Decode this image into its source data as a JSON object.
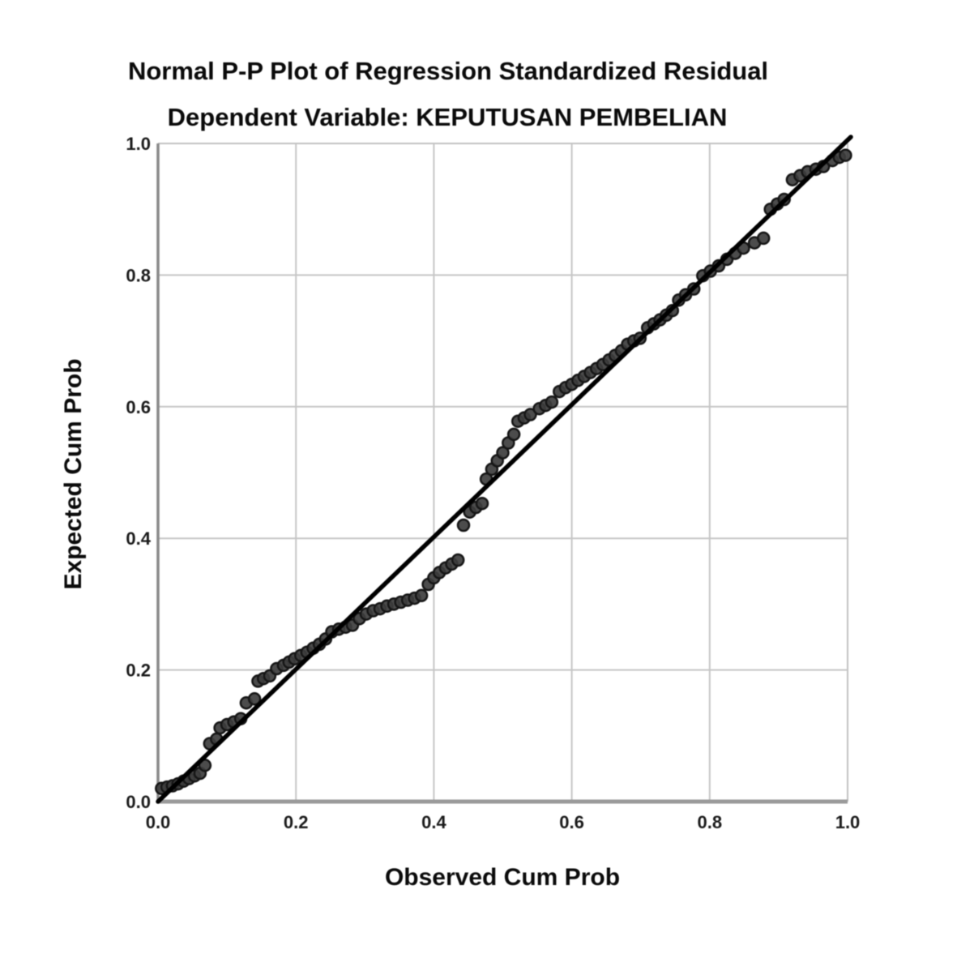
{
  "chart": {
    "title": "Normal P-P Plot of Regression Standardized Residual",
    "subtitle": "Dependent Variable: KEPUTUSAN PEMBELIAN",
    "x_axis_label": "Observed Cum Prob",
    "y_axis_label": "Expected Cum Prob"
  },
  "colors": {
    "background": "#ffffff",
    "gridline": "#c6c6c6",
    "frame_left": "#8a8a8a",
    "frame_bottom": "#9a9a9a",
    "frame_light": "#c2c2c2",
    "point_fill": "#3d3d3d",
    "point_stroke": "#161616",
    "reference_line": "#000000",
    "text": "#0a0a0a"
  },
  "chart_data": {
    "type": "scatter",
    "title": "Normal P-P Plot of Regression Standardized Residual",
    "subtitle": "Dependent Variable: KEPUTUSAN PEMBELIAN",
    "xlabel": "Observed Cum Prob",
    "ylabel": "Expected Cum Prob",
    "xlim": [
      0.0,
      1.0
    ],
    "ylim": [
      0.0,
      1.0
    ],
    "xticks": [
      0.0,
      0.2,
      0.4,
      0.6,
      0.8,
      1.0
    ],
    "yticks": [
      0.0,
      0.2,
      0.4,
      0.6,
      0.8,
      1.0
    ],
    "xticklabels": [
      "0.0",
      "0.2",
      "0.4",
      "0.6",
      "0.8",
      "1.0"
    ],
    "yticklabels": [
      "0.0",
      "0.2",
      "0.4",
      "0.6",
      "0.8",
      "1.0"
    ],
    "grid": true,
    "legend": "none",
    "reference_line": {
      "from": [
        0.0,
        0.0
      ],
      "to": [
        1.0,
        1.0
      ]
    },
    "series": [
      {
        "name": "Regression Standardized Residual",
        "marker": "circle",
        "points": [
          [
            0.005,
            0.02
          ],
          [
            0.013,
            0.022
          ],
          [
            0.021,
            0.024
          ],
          [
            0.029,
            0.027
          ],
          [
            0.037,
            0.031
          ],
          [
            0.045,
            0.035
          ],
          [
            0.053,
            0.039
          ],
          [
            0.061,
            0.043
          ],
          [
            0.068,
            0.055
          ],
          [
            0.075,
            0.088
          ],
          [
            0.085,
            0.095
          ],
          [
            0.09,
            0.112
          ],
          [
            0.1,
            0.117
          ],
          [
            0.11,
            0.121
          ],
          [
            0.12,
            0.126
          ],
          [
            0.128,
            0.15
          ],
          [
            0.14,
            0.156
          ],
          [
            0.145,
            0.183
          ],
          [
            0.153,
            0.187
          ],
          [
            0.162,
            0.191
          ],
          [
            0.172,
            0.202
          ],
          [
            0.182,
            0.207
          ],
          [
            0.19,
            0.212
          ],
          [
            0.198,
            0.217
          ],
          [
            0.207,
            0.222
          ],
          [
            0.216,
            0.227
          ],
          [
            0.225,
            0.233
          ],
          [
            0.234,
            0.239
          ],
          [
            0.243,
            0.247
          ],
          [
            0.252,
            0.258
          ],
          [
            0.262,
            0.262
          ],
          [
            0.272,
            0.265
          ],
          [
            0.282,
            0.268
          ],
          [
            0.292,
            0.278
          ],
          [
            0.302,
            0.285
          ],
          [
            0.312,
            0.29
          ],
          [
            0.322,
            0.293
          ],
          [
            0.332,
            0.297
          ],
          [
            0.342,
            0.3
          ],
          [
            0.352,
            0.303
          ],
          [
            0.362,
            0.306
          ],
          [
            0.372,
            0.309
          ],
          [
            0.382,
            0.313
          ],
          [
            0.392,
            0.33
          ],
          [
            0.4,
            0.34
          ],
          [
            0.408,
            0.348
          ],
          [
            0.417,
            0.355
          ],
          [
            0.426,
            0.361
          ],
          [
            0.435,
            0.367
          ],
          [
            0.443,
            0.42
          ],
          [
            0.452,
            0.44
          ],
          [
            0.461,
            0.447
          ],
          [
            0.47,
            0.453
          ],
          [
            0.476,
            0.49
          ],
          [
            0.484,
            0.505
          ],
          [
            0.492,
            0.518
          ],
          [
            0.5,
            0.53
          ],
          [
            0.508,
            0.545
          ],
          [
            0.516,
            0.558
          ],
          [
            0.522,
            0.578
          ],
          [
            0.531,
            0.583
          ],
          [
            0.54,
            0.588
          ],
          [
            0.553,
            0.597
          ],
          [
            0.562,
            0.602
          ],
          [
            0.571,
            0.607
          ],
          [
            0.582,
            0.623
          ],
          [
            0.591,
            0.629
          ],
          [
            0.6,
            0.634
          ],
          [
            0.609,
            0.64
          ],
          [
            0.618,
            0.646
          ],
          [
            0.627,
            0.652
          ],
          [
            0.636,
            0.658
          ],
          [
            0.645,
            0.664
          ],
          [
            0.654,
            0.671
          ],
          [
            0.663,
            0.678
          ],
          [
            0.672,
            0.685
          ],
          [
            0.681,
            0.695
          ],
          [
            0.69,
            0.7
          ],
          [
            0.699,
            0.704
          ],
          [
            0.71,
            0.72
          ],
          [
            0.719,
            0.726
          ],
          [
            0.728,
            0.732
          ],
          [
            0.737,
            0.739
          ],
          [
            0.746,
            0.746
          ],
          [
            0.755,
            0.762
          ],
          [
            0.765,
            0.77
          ],
          [
            0.777,
            0.779
          ],
          [
            0.79,
            0.799
          ],
          [
            0.801,
            0.806
          ],
          [
            0.813,
            0.814
          ],
          [
            0.825,
            0.824
          ],
          [
            0.837,
            0.833
          ],
          [
            0.849,
            0.841
          ],
          [
            0.865,
            0.849
          ],
          [
            0.878,
            0.856
          ],
          [
            0.888,
            0.9
          ],
          [
            0.898,
            0.908
          ],
          [
            0.908,
            0.915
          ],
          [
            0.92,
            0.945
          ],
          [
            0.931,
            0.951
          ],
          [
            0.942,
            0.957
          ],
          [
            0.954,
            0.961
          ],
          [
            0.965,
            0.965
          ],
          [
            0.978,
            0.974
          ],
          [
            0.988,
            0.979
          ],
          [
            0.997,
            0.982
          ]
        ]
      }
    ]
  }
}
